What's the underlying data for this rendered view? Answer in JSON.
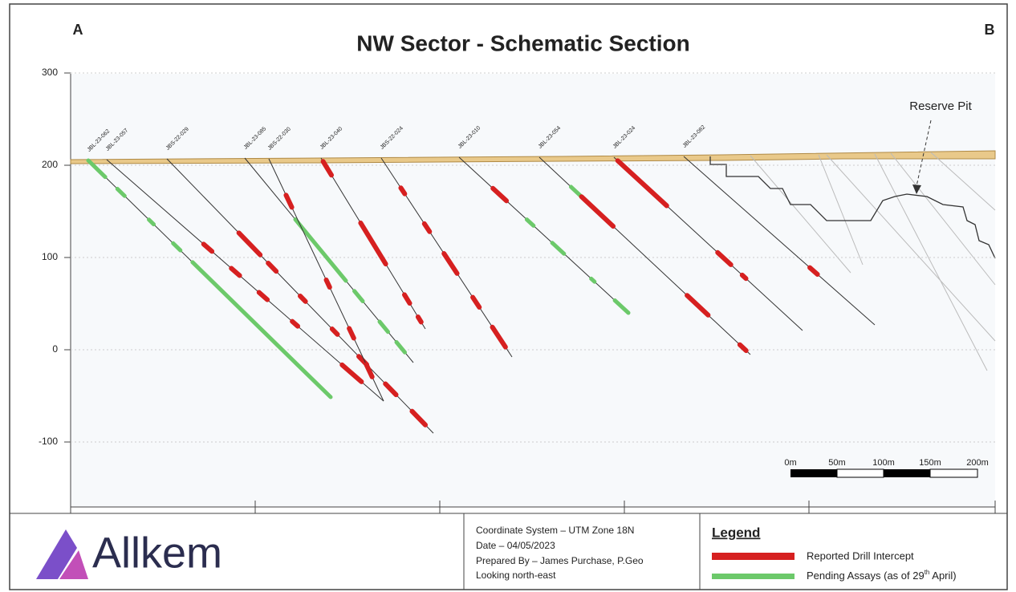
{
  "header": {
    "title": "NW Sector - Schematic Section",
    "left_label": "A",
    "right_label": "B"
  },
  "axis": {
    "ticks": [
      300,
      200,
      100,
      0,
      -100
    ]
  },
  "holes": [
    {
      "label": "JBL-23-062"
    },
    {
      "label": "JBL-23-057"
    },
    {
      "label": "JBS-22-029"
    },
    {
      "label": "JBL-23-085"
    },
    {
      "label": "JBS-22-030"
    },
    {
      "label": "JBL-23-040"
    },
    {
      "label": "JBS-22-024"
    },
    {
      "label": "JBL-23-010"
    },
    {
      "label": "JBL-23-054"
    },
    {
      "label": "JBL-23-024"
    },
    {
      "label": "JBL-23-082"
    }
  ],
  "annotation": "Reserve Pit",
  "scale_bar": [
    "0m",
    "50m",
    "100m",
    "150m",
    "200m"
  ],
  "footer": {
    "logo": "Allkem",
    "info": [
      "Coordinate System – UTM Zone 18N",
      "Date – 04/05/2023",
      "Prepared By – James Purchase, P.Geo",
      "Looking north-east"
    ]
  },
  "legend": {
    "title": "Legend",
    "items": [
      {
        "label": "Reported Drill Intercept"
      },
      {
        "label_parts": [
          "Pending Assays (as of 29",
          "th",
          " April)"
        ]
      }
    ]
  }
}
